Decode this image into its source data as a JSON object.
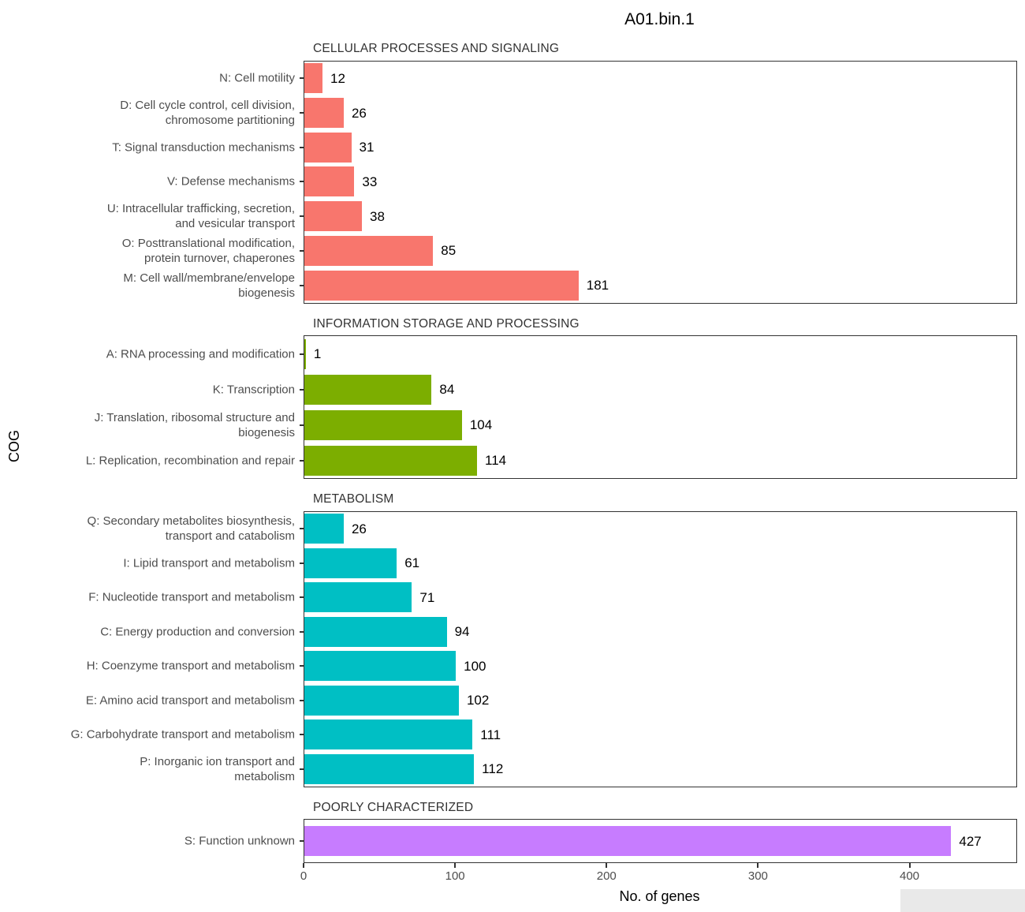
{
  "title": "A01.bin.1",
  "axes": {
    "x_label": "No. of genes",
    "y_label": "COG",
    "x_tick_labels": [
      "0",
      "100",
      "200",
      "300",
      "400"
    ]
  },
  "colors": {
    "cellular_processes": "#F8766D",
    "information_storage": "#7CAE00",
    "metabolism": "#00BFC4",
    "poorly_characterized": "#C77CFF",
    "axis_text": "#4D4D4D",
    "strip_text": "#333333",
    "panel_border": "#333333"
  },
  "chart_data": {
    "type": "bar",
    "orientation": "horizontal",
    "title": "A01.bin.1",
    "xlabel": "No. of genes",
    "ylabel": "COG",
    "xlim": [
      0,
      470
    ],
    "x_ticks": [
      0,
      100,
      200,
      300,
      400
    ],
    "grid": false,
    "legend": false,
    "panels": [
      {
        "strip": "CELLULAR PROCESSES AND SIGNALING",
        "color": "#F8766D",
        "bars": [
          {
            "label": "N: Cell motility",
            "value": 12
          },
          {
            "label": "D: Cell cycle control, cell division,\nchromosome partitioning",
            "value": 26
          },
          {
            "label": "T: Signal transduction mechanisms",
            "value": 31
          },
          {
            "label": "V: Defense mechanisms",
            "value": 33
          },
          {
            "label": "U: Intracellular trafficking, secretion,\nand vesicular transport",
            "value": 38
          },
          {
            "label": "O: Posttranslational modification,\nprotein turnover, chaperones",
            "value": 85
          },
          {
            "label": "M: Cell wall/membrane/envelope\nbiogenesis",
            "value": 181
          }
        ]
      },
      {
        "strip": "INFORMATION STORAGE AND PROCESSING",
        "color": "#7CAE00",
        "bars": [
          {
            "label": "A: RNA processing and modification",
            "value": 1
          },
          {
            "label": "K: Transcription",
            "value": 84
          },
          {
            "label": "J: Translation, ribosomal structure and\nbiogenesis",
            "value": 104
          },
          {
            "label": "L: Replication, recombination and repair",
            "value": 114
          }
        ]
      },
      {
        "strip": "METABOLISM",
        "color": "#00BFC4",
        "bars": [
          {
            "label": "Q: Secondary metabolites biosynthesis,\ntransport and catabolism",
            "value": 26
          },
          {
            "label": "I: Lipid transport and metabolism",
            "value": 61
          },
          {
            "label": "F: Nucleotide transport and metabolism",
            "value": 71
          },
          {
            "label": "C: Energy production and conversion",
            "value": 94
          },
          {
            "label": "H: Coenzyme transport and metabolism",
            "value": 100
          },
          {
            "label": "E: Amino acid transport and metabolism",
            "value": 102
          },
          {
            "label": "G: Carbohydrate transport and metabolism",
            "value": 111
          },
          {
            "label": "P: Inorganic ion transport and\nmetabolism",
            "value": 112
          }
        ]
      },
      {
        "strip": "POORLY CHARACTERIZED",
        "color": "#C77CFF",
        "bars": [
          {
            "label": "S: Function unknown",
            "value": 427
          }
        ]
      }
    ]
  }
}
